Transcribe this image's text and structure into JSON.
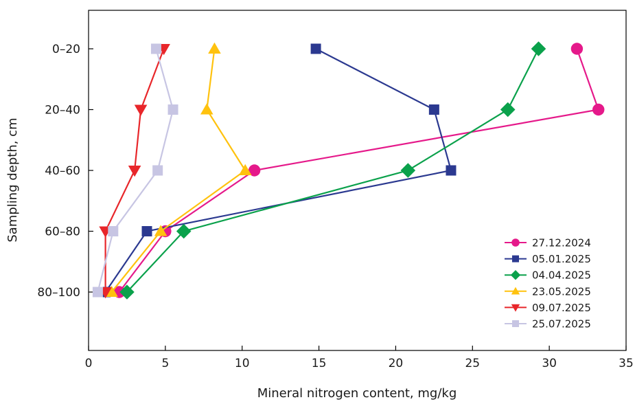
{
  "chart_data": {
    "type": "line",
    "title": "",
    "xlabel": "Mineral nitrogen content, mg/kg",
    "ylabel": "Sampling depth, cm",
    "xlim": [
      0,
      35
    ],
    "x_ticks": [
      0,
      5,
      10,
      15,
      20,
      25,
      30,
      35
    ],
    "categories": [
      "0–20",
      "20–40",
      "40–60",
      "60–80",
      "80–100"
    ],
    "grid": false,
    "legend_position": "bottom-right",
    "series": [
      {
        "name": "27.12.2024",
        "color": "#e5198a",
        "marker": "circle",
        "values": [
          31.8,
          33.2,
          10.8,
          5.0,
          2.0
        ]
      },
      {
        "name": "05.01.2025",
        "color": "#2b3990",
        "marker": "square",
        "values": [
          14.8,
          22.5,
          23.6,
          3.8,
          1.1
        ]
      },
      {
        "name": "04.04.2025",
        "color": "#0aa14b",
        "marker": "diamond",
        "values": [
          29.3,
          27.3,
          20.8,
          6.2,
          2.5
        ]
      },
      {
        "name": "23.05.2025",
        "color": "#ffc20e",
        "marker": "triangle-up",
        "values": [
          8.2,
          7.7,
          10.2,
          4.7,
          1.5
        ]
      },
      {
        "name": "09.07.2025",
        "color": "#e8262a",
        "marker": "triangle-down",
        "values": [
          4.9,
          3.4,
          3.0,
          1.1,
          1.1
        ]
      },
      {
        "name": "25.07.2025",
        "color": "#c7c5e3",
        "marker": "square",
        "values": [
          4.4,
          5.5,
          4.5,
          1.6,
          0.6
        ]
      }
    ]
  }
}
